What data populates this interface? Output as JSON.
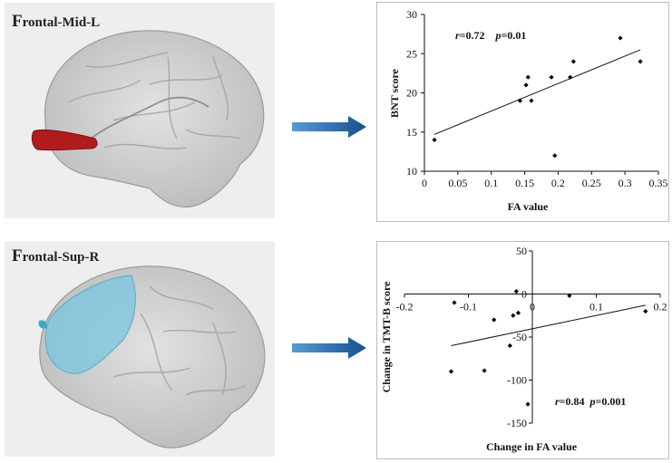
{
  "panels": [
    {
      "label_initial": "F",
      "label_rest": "rontal-Mid-L",
      "region_color": "#b01c1c"
    },
    {
      "label_initial": "F",
      "label_rest": "rontal-Sup-R",
      "region_color": "#7ac6e0"
    }
  ],
  "arrow_color": "#1f6fb5",
  "chart_data": [
    {
      "type": "scatter",
      "title": "",
      "xlabel": "FA value",
      "ylabel": "BNT  score",
      "xlim": [
        0,
        0.35
      ],
      "ylim": [
        10,
        30
      ],
      "xticks": [
        "0",
        "0.05",
        "0.1",
        "0.15",
        "0.2",
        "0.25",
        "0.3",
        "0.35"
      ],
      "yticks": [
        "10",
        "15",
        "20",
        "25",
        "30"
      ],
      "points": [
        {
          "x": 0.015,
          "y": 14
        },
        {
          "x": 0.143,
          "y": 19
        },
        {
          "x": 0.152,
          "y": 21
        },
        {
          "x": 0.155,
          "y": 22
        },
        {
          "x": 0.16,
          "y": 19
        },
        {
          "x": 0.19,
          "y": 22
        },
        {
          "x": 0.195,
          "y": 12
        },
        {
          "x": 0.218,
          "y": 22
        },
        {
          "x": 0.223,
          "y": 24
        },
        {
          "x": 0.293,
          "y": 27
        },
        {
          "x": 0.323,
          "y": 24
        }
      ],
      "trendline": {
        "x": [
          0.015,
          0.323
        ],
        "y": [
          14.7,
          25.5
        ]
      },
      "annotation": {
        "r_sym": "r",
        "r_val": "=0.72",
        "p_sym": "p",
        "p_val": "=0.01"
      },
      "grid": false,
      "legend": "none"
    },
    {
      "type": "scatter",
      "title": "",
      "xlabel": "Change in FA value",
      "ylabel": "Change in TMT-B score",
      "xlim": [
        -0.2,
        0.2
      ],
      "ylim": [
        -150,
        50
      ],
      "xticks": [
        "-0.2",
        "-0.1",
        "0",
        "0.1",
        "0.2"
      ],
      "yticks": [
        "50",
        "0",
        "-50",
        "-100",
        "-150"
      ],
      "points": [
        {
          "x": -0.122,
          "y": -10
        },
        {
          "x": -0.06,
          "y": -30
        },
        {
          "x": -0.025,
          "y": 3
        },
        {
          "x": -0.03,
          "y": -25
        },
        {
          "x": -0.022,
          "y": -22
        },
        {
          "x": -0.035,
          "y": -60
        },
        {
          "x": -0.075,
          "y": -89
        },
        {
          "x": -0.127,
          "y": -90
        },
        {
          "x": -0.007,
          "y": -128
        },
        {
          "x": 0.058,
          "y": -2
        },
        {
          "x": 0.177,
          "y": -20
        }
      ],
      "trendline": {
        "x": [
          -0.127,
          0.177
        ],
        "y": [
          -60,
          -13
        ]
      },
      "annotation": {
        "r_sym": "r",
        "r_val": "=0.84",
        "p_sym": "p",
        "p_val": "=0.001"
      },
      "grid": false,
      "legend": "none"
    }
  ]
}
